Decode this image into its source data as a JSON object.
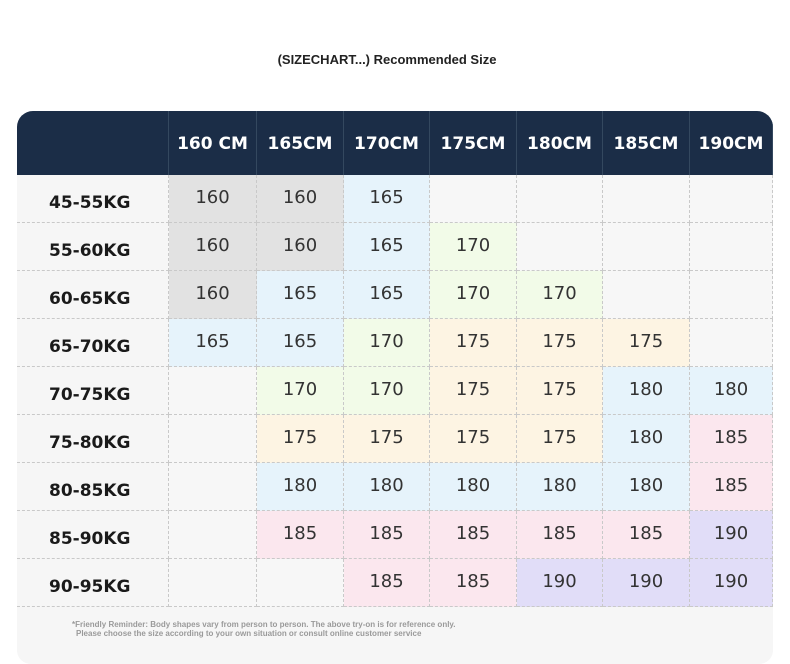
{
  "title": "(SIZECHART...) Recommended Size",
  "columns": [
    "160 CM",
    "165CM",
    "170CM",
    "175CM",
    "180CM",
    "185CM",
    "190CM"
  ],
  "rows": [
    {
      "label": "45-55KG",
      "cells": [
        "160",
        "160",
        "165",
        "",
        "",
        "",
        ""
      ]
    },
    {
      "label": "55-60KG",
      "cells": [
        "160",
        "160",
        "165",
        "170",
        "",
        "",
        ""
      ]
    },
    {
      "label": "60-65KG",
      "cells": [
        "160",
        "165",
        "165",
        "170",
        "170",
        "",
        ""
      ]
    },
    {
      "label": "65-70KG",
      "cells": [
        "165",
        "165",
        "170",
        "175",
        "175",
        "175",
        ""
      ]
    },
    {
      "label": "70-75KG",
      "cells": [
        "",
        "170",
        "170",
        "175",
        "175",
        "180",
        "180"
      ]
    },
    {
      "label": "75-80KG",
      "cells": [
        "",
        "175",
        "175",
        "175",
        "175",
        "180",
        "185"
      ]
    },
    {
      "label": "80-85KG",
      "cells": [
        "",
        "180",
        "180",
        "180",
        "180",
        "180",
        "185"
      ]
    },
    {
      "label": "85-90KG",
      "cells": [
        "",
        "185",
        "185",
        "185",
        "185",
        "185",
        "190"
      ]
    },
    {
      "label": "90-95KG",
      "cells": [
        "",
        "",
        "185",
        "185",
        "190",
        "190",
        "190"
      ]
    }
  ],
  "reminder": {
    "line1": "*Friendly Reminder: Body shapes vary from person to person. The above try-on is for reference only.",
    "line2": "Please choose the size according to your own situation or consult online customer service"
  },
  "colors": {
    "header_bg": "#1b2d47",
    "size_160": "#e2e2e2",
    "size_165": "#e6f3fb",
    "size_170": "#f2fbe8",
    "size_175": "#fdf4e3",
    "size_180": "#e6f3fb",
    "size_185": "#fbe7ee",
    "size_190": "#e1ddf8"
  }
}
